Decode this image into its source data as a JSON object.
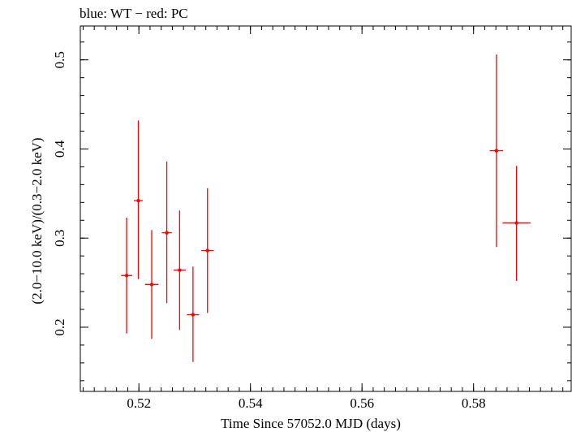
{
  "chart_data": {
    "type": "scatter",
    "title": "blue: WT − red: PC",
    "xlabel": "Time Since 57052.0 MJD (days)",
    "ylabel": "(2.0−10.0 keV)/(0.3−2.0 keV)",
    "xlim": [
      0.5095,
      0.5975
    ],
    "ylim": [
      0.128,
      0.538
    ],
    "x_ticks": [
      {
        "value": 0.52,
        "label": "0.52"
      },
      {
        "value": 0.54,
        "label": "0.54"
      },
      {
        "value": 0.56,
        "label": "0.56"
      },
      {
        "value": 0.58,
        "label": "0.58"
      }
    ],
    "y_ticks": [
      {
        "value": 0.2,
        "label": "0.2"
      },
      {
        "value": 0.3,
        "label": "0.3"
      },
      {
        "value": 0.4,
        "label": "0.4"
      },
      {
        "value": 0.5,
        "label": "0.5"
      }
    ],
    "x_minor_step": 0.002,
    "y_minor_step": 0.02,
    "grid": false,
    "series": [
      {
        "name": "PC",
        "color": "#ff0000",
        "points": [
          {
            "x": 0.5178,
            "xerr": 0.001,
            "y": 0.258,
            "y_lo": 0.193,
            "y_hi": 0.323
          },
          {
            "x": 0.5199,
            "xerr": 0.0008,
            "y": 0.342,
            "y_lo": 0.254,
            "y_hi": 0.432
          },
          {
            "x": 0.5223,
            "xerr": 0.0012,
            "y": 0.248,
            "y_lo": 0.187,
            "y_hi": 0.309
          },
          {
            "x": 0.525,
            "xerr": 0.0009,
            "y": 0.306,
            "y_lo": 0.227,
            "y_hi": 0.386
          },
          {
            "x": 0.5273,
            "xerr": 0.0011,
            "y": 0.264,
            "y_lo": 0.197,
            "y_hi": 0.331
          },
          {
            "x": 0.5297,
            "xerr": 0.0011,
            "y": 0.214,
            "y_lo": 0.161,
            "y_hi": 0.268
          },
          {
            "x": 0.5323,
            "xerr": 0.0011,
            "y": 0.286,
            "y_lo": 0.216,
            "y_hi": 0.356
          },
          {
            "x": 0.5841,
            "xerr": 0.0012,
            "y": 0.398,
            "y_lo": 0.29,
            "y_hi": 0.506
          },
          {
            "x": 0.5877,
            "xerr": 0.0025,
            "y": 0.317,
            "y_lo": 0.252,
            "y_hi": 0.381
          }
        ]
      }
    ]
  }
}
